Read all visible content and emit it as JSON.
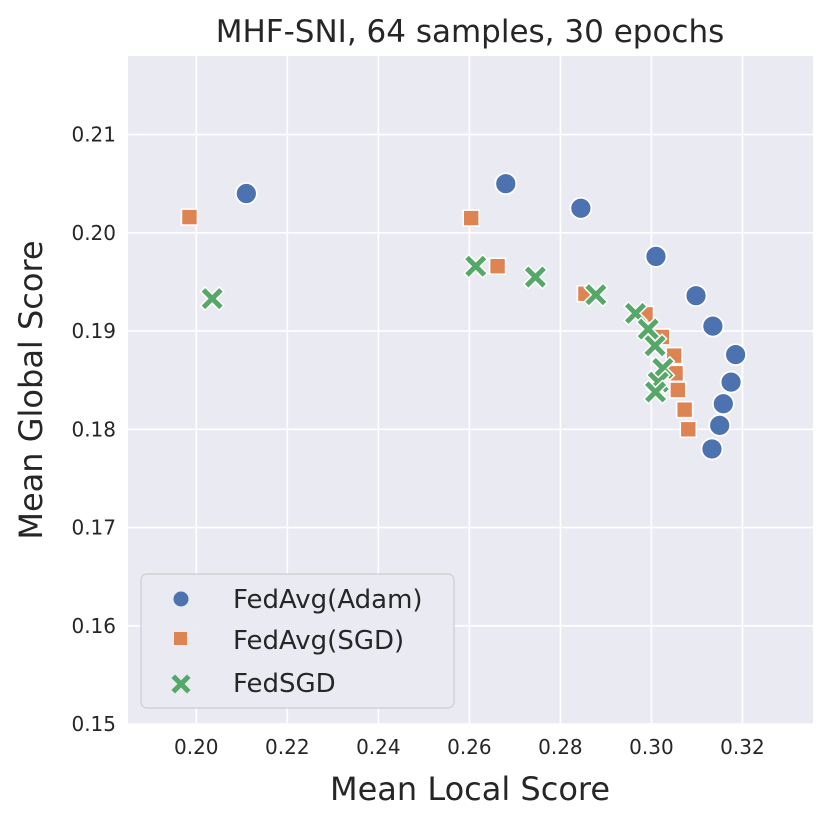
{
  "chart_data": {
    "type": "scatter",
    "title": "MHF-SNI, 64 samples, 30 epochs",
    "xlabel": "Mean Local Score",
    "ylabel": "Mean Global Score",
    "xlim": [
      0.185,
      0.3355
    ],
    "ylim": [
      0.15,
      0.218
    ],
    "xticks": [
      0.2,
      0.22,
      0.24,
      0.26,
      0.28,
      0.3,
      0.32
    ],
    "yticks": [
      0.15,
      0.16,
      0.17,
      0.18,
      0.19,
      0.2,
      0.21
    ],
    "xtick_labels": [
      "0.20",
      "0.22",
      "0.24",
      "0.26",
      "0.28",
      "0.30",
      "0.32"
    ],
    "ytick_labels": [
      "0.15",
      "0.16",
      "0.17",
      "0.18",
      "0.19",
      "0.20",
      "0.21"
    ],
    "grid": true,
    "legend_position": "lower-left",
    "series": [
      {
        "name": "FedAvg(Adam)",
        "marker": "circle",
        "color": "#4c72b0",
        "x": [
          0.211,
          0.268,
          0.2845,
          0.301,
          0.3098,
          0.3135,
          0.3185,
          0.3175,
          0.3158,
          0.315,
          0.3133
        ],
        "y": [
          0.204,
          0.205,
          0.2025,
          0.1976,
          0.1936,
          0.1905,
          0.1876,
          0.1848,
          0.1826,
          0.1804,
          0.178
        ]
      },
      {
        "name": "FedAvg(SGD)",
        "marker": "square",
        "color": "#dd8452",
        "x": [
          0.1985,
          0.2604,
          0.2662,
          0.2855,
          0.2987,
          0.3023,
          0.305,
          0.3053,
          0.3058,
          0.3073,
          0.3081
        ],
        "y": [
          0.2016,
          0.2015,
          0.1966,
          0.1938,
          0.1917,
          0.1894,
          0.1875,
          0.1857,
          0.184,
          0.182,
          0.18
        ]
      },
      {
        "name": "FedSGD",
        "marker": "x",
        "color": "#55a868",
        "x": [
          0.2035,
          0.2614,
          0.2745,
          0.2878,
          0.2965,
          0.2993,
          0.3008,
          0.3025,
          0.3015,
          0.3009
        ],
        "y": [
          0.1933,
          0.1966,
          0.1955,
          0.1937,
          0.1918,
          0.1902,
          0.1885,
          0.1862,
          0.1848,
          0.1838
        ]
      }
    ]
  }
}
